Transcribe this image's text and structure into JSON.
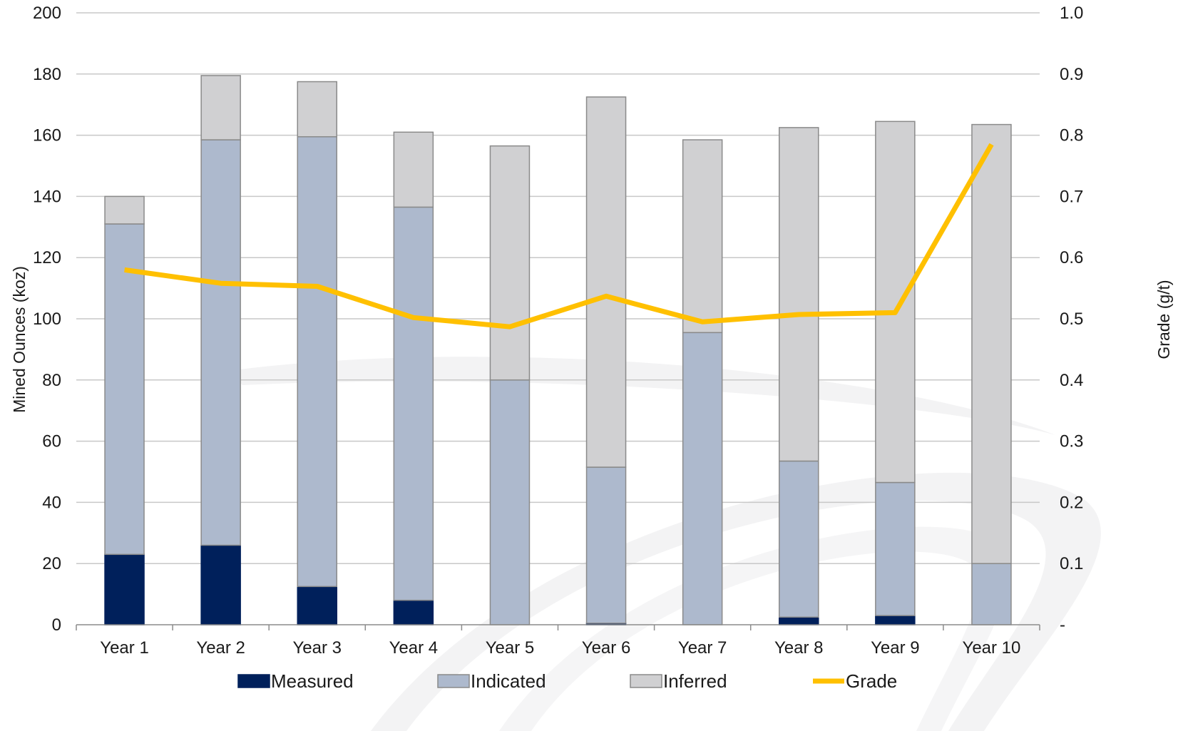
{
  "chart_data": {
    "type": "bar",
    "stacked": true,
    "categories": [
      "Year 1",
      "Year 2",
      "Year 3",
      "Year 4",
      "Year 5",
      "Year 6",
      "Year 7",
      "Year 8",
      "Year 9",
      "Year 10"
    ],
    "series": [
      {
        "name": "Measured",
        "kind": "bar",
        "axis": "left",
        "color": "#00205b",
        "values": [
          23,
          26,
          12.5,
          8,
          0,
          0.5,
          0,
          2.5,
          3,
          0
        ]
      },
      {
        "name": "Indicated",
        "kind": "bar",
        "axis": "left",
        "color": "#adb9cd",
        "values": [
          108,
          132.5,
          147,
          128.5,
          80,
          51,
          95.5,
          51,
          43.5,
          20
        ]
      },
      {
        "name": "Inferred",
        "kind": "bar",
        "axis": "left",
        "color": "#d0d0d2",
        "values": [
          9,
          21,
          18,
          24.5,
          76.5,
          121,
          63,
          109,
          118,
          143.5
        ]
      },
      {
        "name": "Grade",
        "kind": "line",
        "axis": "right",
        "color": "#ffc000",
        "values": [
          0.58,
          0.558,
          0.553,
          0.502,
          0.487,
          0.537,
          0.495,
          0.507,
          0.51,
          0.785
        ]
      }
    ],
    "ylabel": "Mined Ounces (koz)",
    "ylim": [
      0,
      200
    ],
    "yticks": [
      "0",
      "20",
      "40",
      "60",
      "80",
      "100",
      "120",
      "140",
      "160",
      "180",
      "200"
    ],
    "y2label": "Grade (g/t)",
    "y2lim": [
      0,
      1.0
    ],
    "y2ticks": [
      "-",
      "0.1",
      "0.2",
      "0.3",
      "0.4",
      "0.5",
      "0.6",
      "0.7",
      "0.8",
      "0.9",
      "1.0"
    ],
    "grid": true,
    "legend_position": "bottom"
  }
}
